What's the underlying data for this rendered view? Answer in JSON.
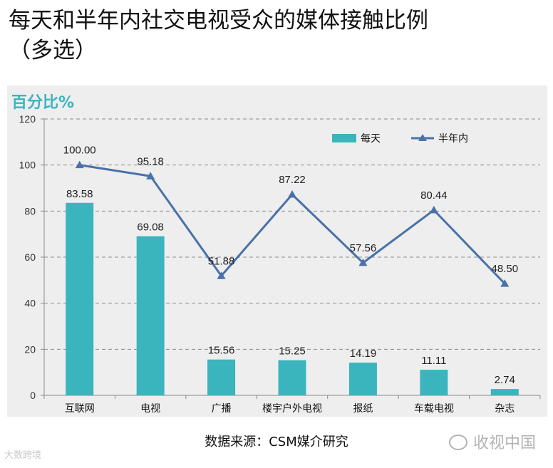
{
  "title_line1": "每天和半年内社交电视受众的媒体接触比例",
  "title_line2": "（多选）",
  "source": "数据来源：CSM媒介研究",
  "watermark": "收视中国",
  "corner_mark": "大数跨境",
  "chart_data": {
    "type": "bar",
    "title": "",
    "ylabel": "百分比%",
    "ylim": [
      0,
      120
    ],
    "yticks": [
      0,
      20,
      40,
      60,
      80,
      100,
      120
    ],
    "grid": true,
    "legend_position": "top-right",
    "categories": [
      "互联网",
      "电视",
      "广播",
      "楼宇户外电视",
      "报纸",
      "车载电视",
      "杂志"
    ],
    "series": [
      {
        "name": "每天",
        "kind": "bar",
        "color": "#3ab5bd",
        "values": [
          83.58,
          69.08,
          15.56,
          15.25,
          14.19,
          11.11,
          2.74
        ],
        "labels": [
          "83.58",
          "69.08",
          "15.56",
          "15.25",
          "14.19",
          "11.11",
          "2.74"
        ]
      },
      {
        "name": "半年内",
        "kind": "line",
        "color": "#4a72a8",
        "values": [
          100.0,
          95.18,
          51.88,
          87.22,
          57.56,
          80.44,
          48.5
        ],
        "labels": [
          "100.00",
          "95.18",
          "51.88",
          "87.22",
          "57.56",
          "80.44",
          "48.50"
        ]
      }
    ]
  }
}
